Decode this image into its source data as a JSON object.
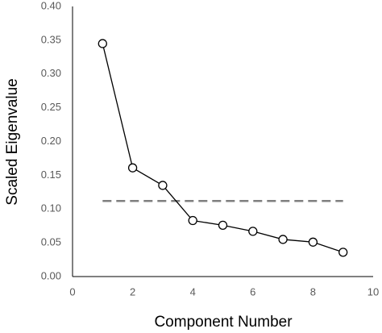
{
  "chart_data": {
    "type": "line",
    "x_label": "Component Number",
    "y_label": "Scaled Eigenvalue",
    "x": [
      1,
      2,
      3,
      4,
      5,
      6,
      7,
      8,
      9
    ],
    "series": [
      {
        "color": "#000000",
        "values": [
          0.345,
          0.161,
          0.135,
          0.083,
          0.076,
          0.067,
          0.055,
          0.051,
          0.036
        ]
      }
    ],
    "reference_line": {
      "color": "#7f7f7f",
      "y": 0.112,
      "x": [
        1,
        9
      ]
    },
    "xlim": [
      0,
      10
    ],
    "xticks": [
      0,
      2,
      4,
      6,
      8,
      10
    ],
    "ylim": [
      0,
      0.4
    ],
    "yticks": [
      {
        "value": 0,
        "label": "0.00"
      },
      {
        "value": 0.05,
        "label": "0.05"
      },
      {
        "value": 0.1,
        "label": "0.10"
      },
      {
        "value": 0.15,
        "label": "0.15"
      },
      {
        "value": 0.2,
        "label": "0.20"
      },
      {
        "value": 0.25,
        "label": "0.25"
      },
      {
        "value": 0.3,
        "label": "0.30"
      },
      {
        "value": 0.35,
        "label": "0.35"
      },
      {
        "value": 0.4,
        "label": "0.40"
      }
    ],
    "grid": false
  }
}
